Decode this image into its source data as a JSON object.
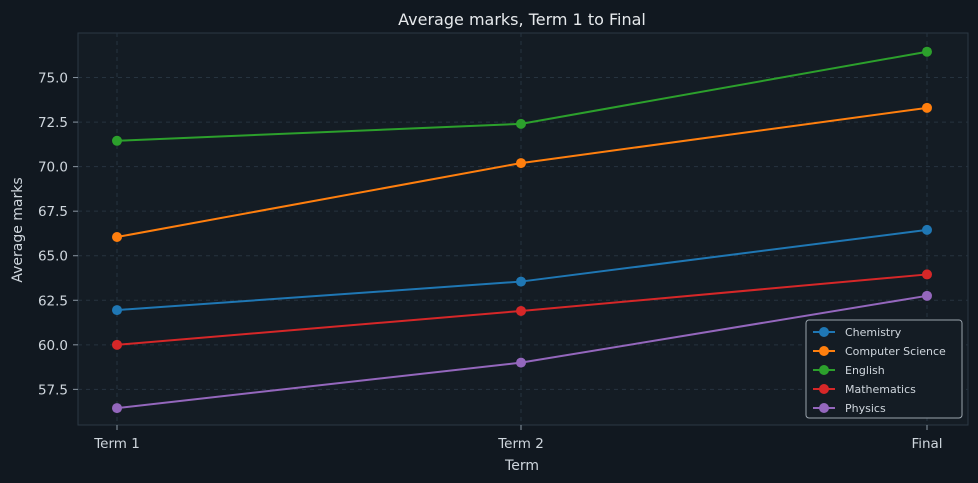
{
  "chart_data": {
    "type": "line",
    "title": "Average marks, Term 1 to Final",
    "xlabel": "Term",
    "ylabel": "Average marks",
    "categories": [
      "Term 1",
      "Term 2",
      "Final"
    ],
    "ylim": [
      55.5,
      77.5
    ],
    "yticks": [
      "57.5",
      "60.0",
      "62.5",
      "65.0",
      "67.5",
      "70.0",
      "72.5",
      "75.0"
    ],
    "grid": true,
    "legend_position": "bottom-right",
    "series": [
      {
        "name": "Chemistry",
        "color": "#1f77b4",
        "values": [
          61.95,
          63.55,
          66.45
        ]
      },
      {
        "name": "Computer Science",
        "color": "#ff7f0e",
        "values": [
          66.05,
          70.2,
          73.3
        ]
      },
      {
        "name": "English",
        "color": "#2ca02c",
        "values": [
          71.45,
          72.4,
          76.45
        ]
      },
      {
        "name": "Mathematics",
        "color": "#d62728",
        "values": [
          60.0,
          61.9,
          63.95
        ]
      },
      {
        "name": "Physics",
        "color": "#9467bd",
        "values": [
          56.45,
          59.0,
          62.75
        ]
      }
    ]
  }
}
